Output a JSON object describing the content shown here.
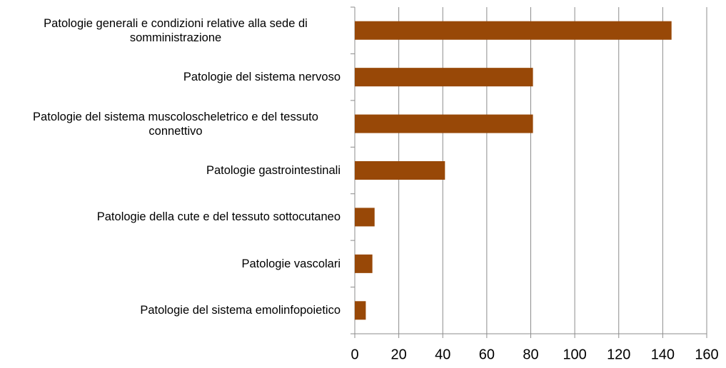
{
  "chart_data": {
    "type": "bar",
    "orientation": "horizontal",
    "categories": [
      "Patologie generali e condizioni relative alla sede di somministrazione",
      "Patologie del sistema nervoso",
      "Patologie del sistema muscoloscheletrico e del tessuto connettivo",
      "Patologie gastrointestinali",
      "Patologie della cute e del tessuto sottocutaneo",
      "Patologie vascolari",
      "Patologie del sistema emolinfopoietico"
    ],
    "values": [
      144,
      81,
      81,
      41,
      9,
      8,
      5
    ],
    "color": "#984807",
    "xlim": [
      0,
      160
    ],
    "xticks": [
      0,
      20,
      40,
      60,
      80,
      100,
      120,
      140,
      160
    ],
    "grid": true
  }
}
